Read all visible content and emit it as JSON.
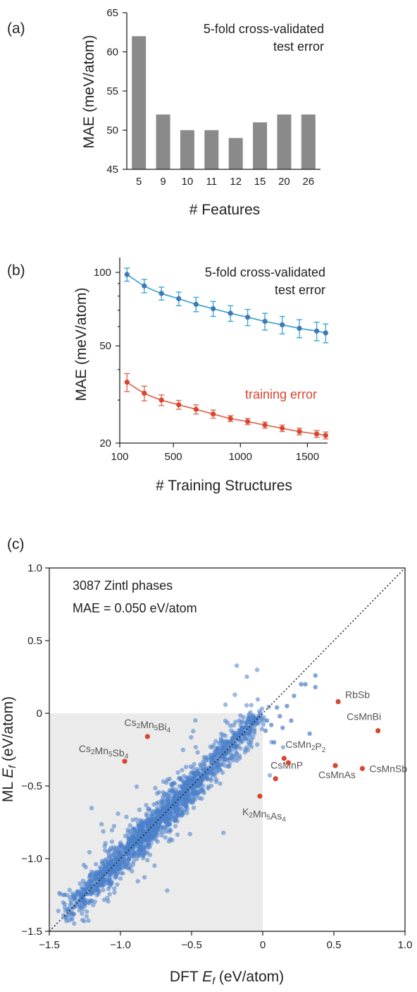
{
  "panels": {
    "a": "(a)",
    "b": "(b)",
    "c": "(c)"
  },
  "colors": {
    "bar": "#8a8a8a",
    "test": "#3fa9cf",
    "test_dot": "#3f77b8",
    "train": "#e06d58",
    "train_dot": "#d9452f",
    "scatter": "#4a7fcb",
    "outlier": "#d9452f",
    "shade": "#ebebeb"
  },
  "chart_data": [
    {
      "type": "bar",
      "panel": "(a)",
      "categories": [
        "5",
        "9",
        "10",
        "11",
        "12",
        "15",
        "20",
        "26"
      ],
      "values": [
        62,
        52,
        50,
        50,
        49,
        51,
        52,
        52
      ],
      "xlabel": "# Features",
      "ylabel": "MAE (meV/atom)",
      "ylim": [
        45,
        65
      ],
      "yticks": [
        45,
        50,
        55,
        60,
        65
      ],
      "annotation": [
        "5-fold cross-validated",
        "test error"
      ]
    },
    {
      "type": "line",
      "panel": "(b)",
      "xlabel": "# Training Structures",
      "ylabel": "MAE (meV/atom)",
      "xlim": [
        100,
        1650
      ],
      "ylim": [
        20,
        115
      ],
      "yscale": "log",
      "xticks": [
        100,
        500,
        1000,
        1500
      ],
      "yticks": [
        20,
        50,
        100
      ],
      "x": [
        154,
        283,
        411,
        540,
        669,
        797,
        926,
        1054,
        1183,
        1312,
        1440,
        1569,
        1636
      ],
      "series": [
        {
          "name": "5-fold cross-validated test error",
          "label": [
            "5-fold cross-validated",
            "test error"
          ],
          "values": [
            98,
            88,
            82,
            78,
            74,
            71,
            68,
            65.5,
            63,
            61,
            59,
            57.5,
            56.5
          ],
          "err": [
            6,
            5.5,
            5,
            5,
            5,
            5,
            5,
            5,
            5,
            5,
            5,
            5,
            5
          ]
        },
        {
          "name": "training error",
          "label": [
            "training error"
          ],
          "values": [
            35.5,
            32,
            30,
            28.7,
            27.5,
            26.3,
            25.2,
            24.5,
            23.7,
            23,
            22.3,
            21.8,
            21.5
          ],
          "err": [
            3,
            2.2,
            1.5,
            1.2,
            1.2,
            1.0,
            0.7,
            0.7,
            0.7,
            0.7,
            0.7,
            0.7,
            0.7
          ]
        }
      ]
    },
    {
      "type": "scatter",
      "panel": "(c)",
      "xlabel_prefix": "DFT ",
      "xlabel_sym": "E",
      "xlabel_sub": "f",
      "xlabel_unit": " (eV/atom)",
      "ylabel_prefix": "ML ",
      "ylabel_sym": "E",
      "ylabel_sub": "f",
      "ylabel_unit": " (eV/atom)",
      "xlim": [
        -1.5,
        1.0
      ],
      "ylim": [
        -1.5,
        1.0
      ],
      "xticks": [
        -1.5,
        -1.0,
        -0.5,
        0,
        0.5,
        1.0
      ],
      "yticks": [
        -1.5,
        -1.0,
        -0.5,
        0,
        0.5,
        1.0
      ],
      "annotations": [
        "3087 Zintl phases",
        "MAE = 0.050 eV/atom"
      ],
      "n_points": 3087,
      "extra_points": [
        [
          0.37,
          0.26
        ],
        [
          0.37,
          0.18
        ],
        [
          0.3,
          0.2
        ],
        [
          0.27,
          0.2
        ],
        [
          0.22,
          0.12
        ],
        [
          0.17,
          0.05
        ],
        [
          0.12,
          -0.02
        ],
        [
          0.1,
          0.04
        ],
        [
          0.06,
          -0.08
        ],
        [
          0.2,
          -0.05
        ],
        [
          0.14,
          -0.1
        ],
        [
          0.33,
          -0.14
        ],
        [
          0.08,
          -0.2
        ],
        [
          0.03,
          -0.05
        ],
        [
          0.02,
          -0.12
        ]
      ],
      "outliers": [
        {
          "name": "RbSb",
          "x": 0.53,
          "y": 0.08
        },
        {
          "name": "CsMnBi",
          "x": 0.81,
          "y": -0.12
        },
        {
          "name": "Cs2Mn5Bi4",
          "x": -0.81,
          "y": -0.16
        },
        {
          "name": "Cs2Mn5Sb4",
          "x": -0.97,
          "y": -0.33
        },
        {
          "name": "CsMn2P2",
          "x": 0.15,
          "y": -0.31
        },
        {
          "name": "CsMnP",
          "x": 0.09,
          "y": -0.45
        },
        {
          "name": "CsMnAs",
          "x": 0.51,
          "y": -0.36
        },
        {
          "name": "CsMnSb",
          "x": 0.7,
          "y": -0.38
        },
        {
          "name": "K2Mn5As4",
          "x": -0.02,
          "y": -0.57
        },
        {
          "name": "",
          "x": 0.18,
          "y": -0.34
        }
      ]
    }
  ]
}
